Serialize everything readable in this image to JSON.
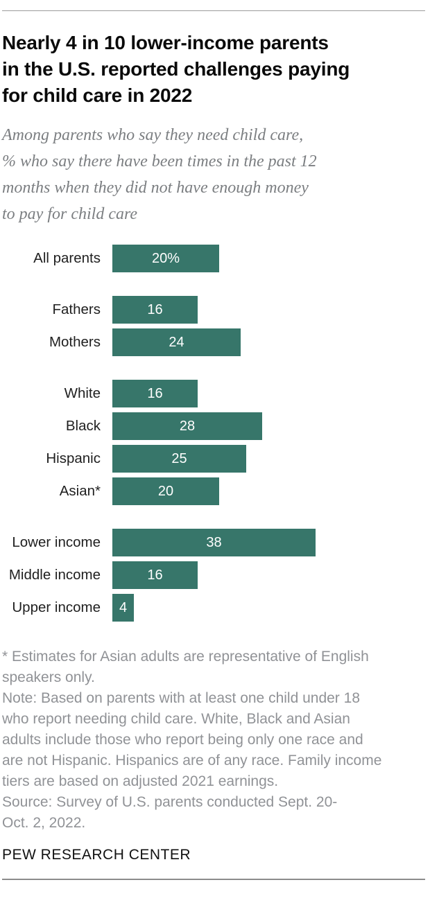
{
  "header": {
    "title": "Nearly 4 in 10 lower-income parents\nin the U.S. reported challenges paying\nfor child care in 2022",
    "subtitle": "Among parents who say they need child care,\n% who say there have been times in the past 12\nmonths when they did not have enough money\nto pay for child care"
  },
  "chart_data": {
    "type": "bar",
    "orientation": "horizontal",
    "unit": "%",
    "bar_color": "#37766a",
    "value_label_color": "#ffffff",
    "xlim": [
      0,
      40
    ],
    "grid": false,
    "legend": false,
    "groups": [
      {
        "rows": [
          {
            "label": "All parents",
            "value": 20,
            "value_label": "20%"
          }
        ]
      },
      {
        "rows": [
          {
            "label": "Fathers",
            "value": 16,
            "value_label": "16"
          },
          {
            "label": "Mothers",
            "value": 24,
            "value_label": "24"
          }
        ]
      },
      {
        "rows": [
          {
            "label": "White",
            "value": 16,
            "value_label": "16"
          },
          {
            "label": "Black",
            "value": 28,
            "value_label": "28"
          },
          {
            "label": "Hispanic",
            "value": 25,
            "value_label": "25"
          },
          {
            "label": "Asian*",
            "value": 20,
            "value_label": "20"
          }
        ]
      },
      {
        "rows": [
          {
            "label": "Lower income",
            "value": 38,
            "value_label": "38"
          },
          {
            "label": "Middle income",
            "value": 16,
            "value_label": "16"
          },
          {
            "label": "Upper income",
            "value": 4,
            "value_label": "4"
          }
        ]
      }
    ]
  },
  "footer": {
    "asterisk_note": "* Estimates for Asian adults are representative of English\nspeakers only.",
    "note": "Note: Based on parents with at least one child under 18\nwho report needing child care. White, Black and Asian\nadults include those who report being only one race and\nare not Hispanic. Hispanics are of any race. Family income\ntiers are based on adjusted 2021 earnings.",
    "source": "Source: Survey of U.S. parents conducted Sept. 20-\nOct. 2, 2022.",
    "brand": "PEW RESEARCH CENTER"
  }
}
